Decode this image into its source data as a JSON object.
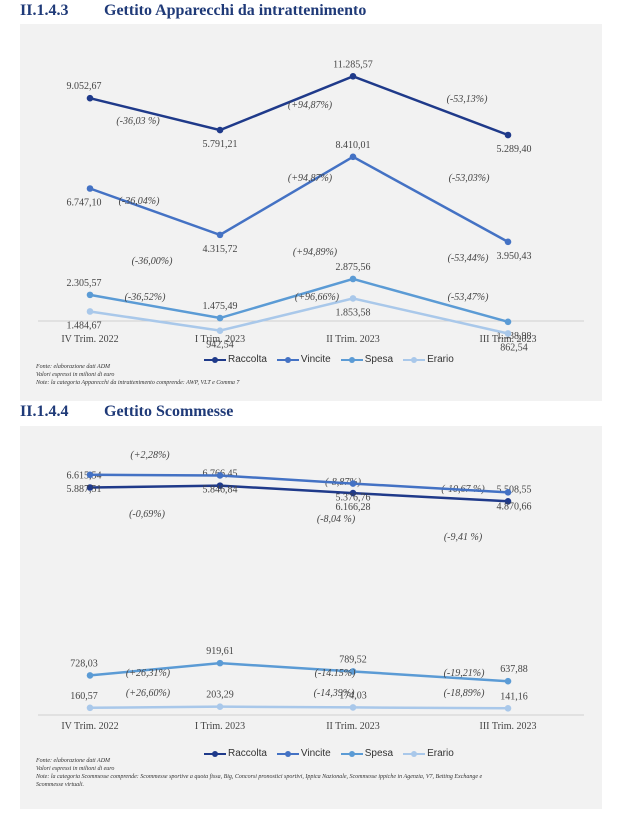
{
  "sections": [
    {
      "number": "II.1.4.3",
      "title": "Gettito Apparecchi da intrattenimento"
    },
    {
      "number": "II.1.4.4",
      "title": "Gettito Scommesse"
    }
  ],
  "colors": {
    "Raccolta": "#1f3a8a",
    "Vincite": "#4472c4",
    "Spesa": "#5b9bd5",
    "Erario": "#a9c8ea"
  },
  "chart_data": [
    {
      "type": "line",
      "categories": [
        "IV Trim. 2022",
        "I Trim. 2023",
        "II Trim. 2023",
        "III Trim. 2023"
      ],
      "series": [
        {
          "name": "Raccolta",
          "values": [
            9052.67,
            5791.21,
            11285.57,
            5289.4
          ],
          "labels": [
            "9.052,67",
            "5.791,21",
            "11.285,57",
            "5.289,40"
          ],
          "changes": [
            "(-36,03 %)",
            "(+94,87%)",
            "(-53,13%)"
          ]
        },
        {
          "name": "Vincite",
          "values": [
            6747.1,
            4315.72,
            8410.01,
            3950.43
          ],
          "labels": [
            "6.747,10",
            "4.315,72",
            "8.410,01",
            "3.950,43"
          ],
          "changes": [
            "(-36,04%)",
            "(+94,87%)",
            "(-53,03%)"
          ]
        },
        {
          "name": "Spesa",
          "values": [
            2305.57,
            1475.49,
            2875.56,
            1338.98
          ],
          "labels": [
            "2.305,57",
            "1.475,49",
            "2.875,56",
            "1.338,98"
          ],
          "changes": [
            "(-36,00%)",
            "(+94,89%)",
            "(-53,44%)"
          ]
        },
        {
          "name": "Erario",
          "values": [
            1484.67,
            942.54,
            1853.58,
            862.54
          ],
          "labels": [
            "1.484,67",
            "942,54",
            "1.853,58",
            "862,54"
          ],
          "changes": [
            "(-36,52%)",
            "(+96,66%)",
            "(-53,47%)"
          ]
        }
      ],
      "notes": [
        "Fonte: elaborazione dati ADM",
        "Valori espressi in milioni di euro",
        "Note: la categoria Apparecchi da intrattenimento comprende: AWP, VLT e Comma 7"
      ]
    },
    {
      "type": "line",
      "categories": [
        "IV Trim. 2022",
        "I Trim. 2023",
        "II Trim. 2023",
        "III Trim. 2023"
      ],
      "series": [
        {
          "name": "Raccolta",
          "values": [
            6615.54,
            6766.45,
            6166.28,
            5508.55
          ],
          "labels": [
            "6.615,54",
            "6.766,45",
            "6.166,28",
            "5.508,55"
          ],
          "changes": [
            "(+2,28%)",
            "(-8,87%)",
            "(-10,67 %)"
          ]
        },
        {
          "name": "Vincite",
          "values": [
            5887.51,
            5846.84,
            5376.76,
            4870.66
          ],
          "labels": [
            "5.887,51",
            "5.846,84",
            "5.376,76",
            "4.870,66"
          ],
          "changes": [
            "(-0,69%)",
            "(-8,04 %)",
            "(-9,41 %)"
          ]
        },
        {
          "name": "Spesa",
          "values": [
            728.03,
            919.61,
            789.52,
            637.88
          ],
          "labels": [
            "728,03",
            "919,61",
            "789,52",
            "637,88"
          ],
          "changes": [
            "(+26,31%)",
            "(-14.15%)",
            "(-19,21%)"
          ]
        },
        {
          "name": "Erario",
          "values": [
            160.57,
            203.29,
            174.03,
            141.16
          ],
          "labels": [
            "160,57",
            "203,29",
            "174,03",
            "141,16"
          ],
          "changes": [
            "(+26,60%)",
            "(-14,39%)",
            "(-18,89%)"
          ]
        }
      ],
      "notes": [
        "Fonte: elaborazione dati ADM",
        "Valori espressi in milioni di euro",
        "Note: la categoria Scommesse comprende: Scommesse sportive a quota fissa, Big, Concorsi pronostici sportivi, Ippica Nazionale, Scommesse ippiche in Agenzia, V7, Betting Exchange e",
        "Scommesse virtuali."
      ]
    }
  ]
}
